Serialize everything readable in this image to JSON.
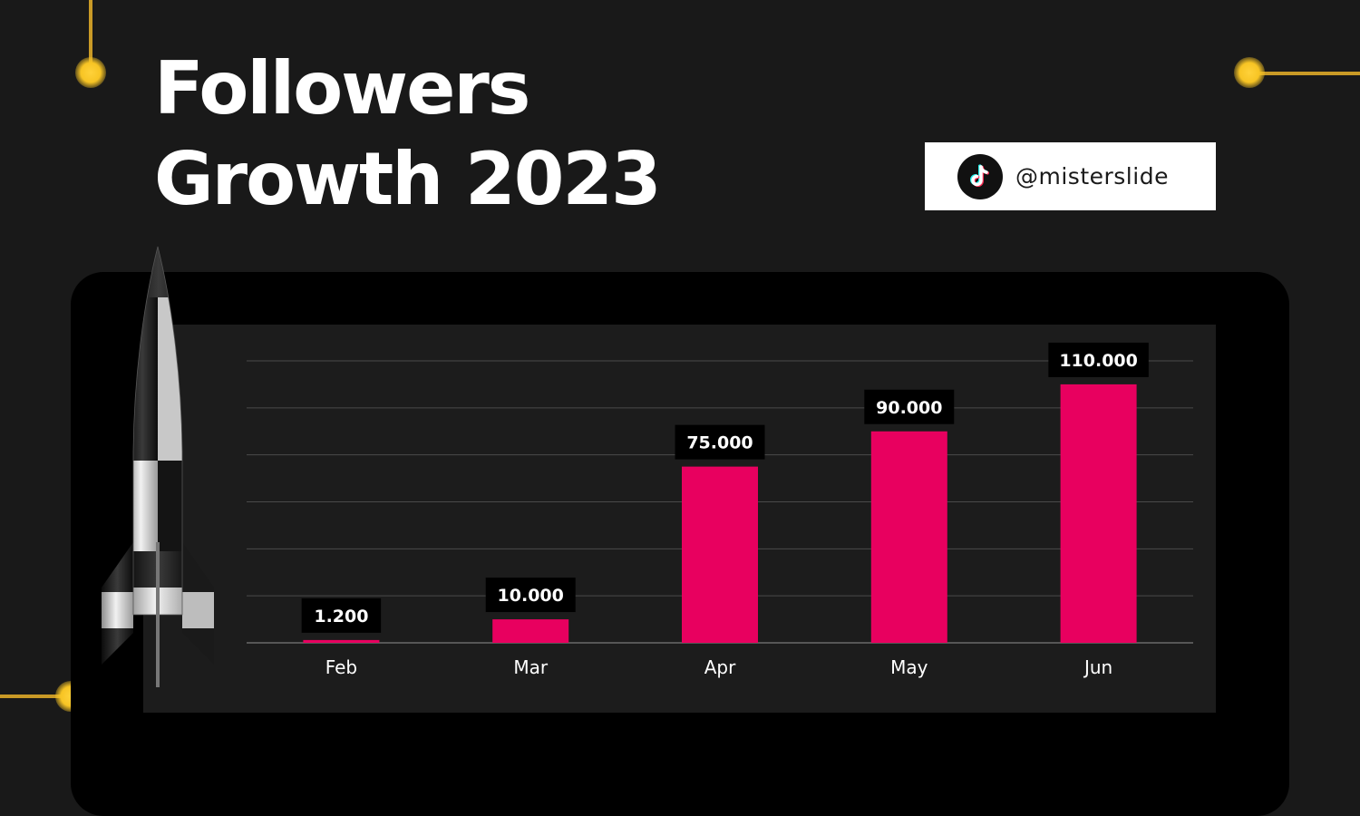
{
  "slide": {
    "title_line1": "Followers",
    "title_line2": "Growth 2023",
    "handle": "@misterslide",
    "handle_icon": "tiktok-icon",
    "accent_color": "#e8005f",
    "decor_color": "#f7c424"
  },
  "chart_data": {
    "type": "bar",
    "categories": [
      "Feb",
      "Mar",
      "Apr",
      "May",
      "Jun"
    ],
    "values": [
      1200,
      10000,
      75000,
      90000,
      110000
    ],
    "data_labels": [
      "1.200",
      "10.000",
      "75.000",
      "90.000",
      "110.000"
    ],
    "title": "",
    "xlabel": "",
    "ylabel": "",
    "ylim": [
      0,
      120000
    ],
    "grid": true,
    "legend": "none",
    "bar_color": "#e8005f"
  }
}
